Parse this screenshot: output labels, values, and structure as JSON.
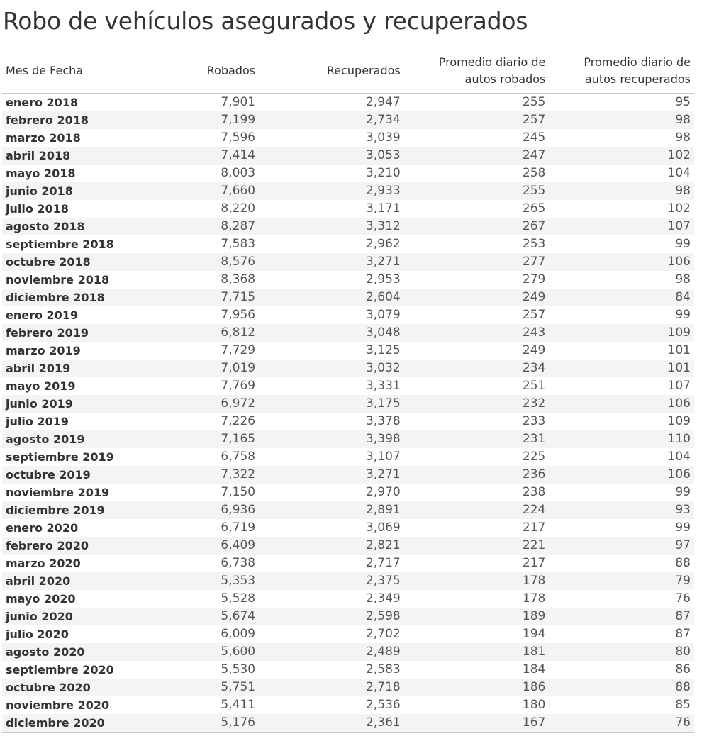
{
  "title": "Robo de vehículos asegurados y recuperados",
  "chart_data": {
    "type": "table",
    "title": "Robo de vehículos asegurados y recuperados",
    "columns": [
      "Mes de Fecha",
      "Robados",
      "Recuperados",
      "Promedio diario de\nautos robados",
      "Promedio diario de\nautos recuperados"
    ],
    "rows": [
      [
        "enero 2018",
        "7,901",
        "2,947",
        "255",
        "95"
      ],
      [
        "febrero 2018",
        "7,199",
        "2,734",
        "257",
        "98"
      ],
      [
        "marzo 2018",
        "7,596",
        "3,039",
        "245",
        "98"
      ],
      [
        "abril 2018",
        "7,414",
        "3,053",
        "247",
        "102"
      ],
      [
        "mayo 2018",
        "8,003",
        "3,210",
        "258",
        "104"
      ],
      [
        "junio 2018",
        "7,660",
        "2,933",
        "255",
        "98"
      ],
      [
        "julio 2018",
        "8,220",
        "3,171",
        "265",
        "102"
      ],
      [
        "agosto 2018",
        "8,287",
        "3,312",
        "267",
        "107"
      ],
      [
        "septiembre 2018",
        "7,583",
        "2,962",
        "253",
        "99"
      ],
      [
        "octubre 2018",
        "8,576",
        "3,271",
        "277",
        "106"
      ],
      [
        "noviembre 2018",
        "8,368",
        "2,953",
        "279",
        "98"
      ],
      [
        "diciembre 2018",
        "7,715",
        "2,604",
        "249",
        "84"
      ],
      [
        "enero 2019",
        "7,956",
        "3,079",
        "257",
        "99"
      ],
      [
        "febrero 2019",
        "6,812",
        "3,048",
        "243",
        "109"
      ],
      [
        "marzo 2019",
        "7,729",
        "3,125",
        "249",
        "101"
      ],
      [
        "abril 2019",
        "7,019",
        "3,032",
        "234",
        "101"
      ],
      [
        "mayo 2019",
        "7,769",
        "3,331",
        "251",
        "107"
      ],
      [
        "junio 2019",
        "6,972",
        "3,175",
        "232",
        "106"
      ],
      [
        "julio 2019",
        "7,226",
        "3,378",
        "233",
        "109"
      ],
      [
        "agosto 2019",
        "7,165",
        "3,398",
        "231",
        "110"
      ],
      [
        "septiembre 2019",
        "6,758",
        "3,107",
        "225",
        "104"
      ],
      [
        "octubre 2019",
        "7,322",
        "3,271",
        "236",
        "106"
      ],
      [
        "noviembre 2019",
        "7,150",
        "2,970",
        "238",
        "99"
      ],
      [
        "diciembre 2019",
        "6,936",
        "2,891",
        "224",
        "93"
      ],
      [
        "enero 2020",
        "6,719",
        "3,069",
        "217",
        "99"
      ],
      [
        "febrero 2020",
        "6,409",
        "2,821",
        "221",
        "97"
      ],
      [
        "marzo 2020",
        "6,738",
        "2,717",
        "217",
        "88"
      ],
      [
        "abril 2020",
        "5,353",
        "2,375",
        "178",
        "79"
      ],
      [
        "mayo 2020",
        "5,528",
        "2,349",
        "178",
        "76"
      ],
      [
        "junio 2020",
        "5,674",
        "2,598",
        "189",
        "87"
      ],
      [
        "julio 2020",
        "6,009",
        "2,702",
        "194",
        "87"
      ],
      [
        "agosto 2020",
        "5,600",
        "2,489",
        "181",
        "80"
      ],
      [
        "septiembre 2020",
        "5,530",
        "2,583",
        "184",
        "86"
      ],
      [
        "octubre 2020",
        "5,751",
        "2,718",
        "186",
        "88"
      ],
      [
        "noviembre 2020",
        "5,411",
        "2,536",
        "180",
        "85"
      ],
      [
        "diciembre 2020",
        "5,176",
        "2,361",
        "167",
        "76"
      ]
    ]
  }
}
